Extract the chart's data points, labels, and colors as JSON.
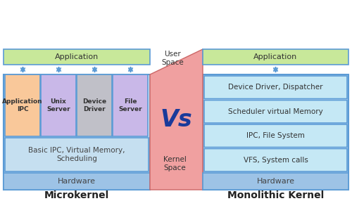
{
  "bg_color": "#ffffff",
  "title_left": "Microkernel",
  "title_right": "Monolithic Kernel",
  "vs_text": "Vs",
  "user_space": "User\nSpace",
  "kernel_space": "Kernel\nSpace",
  "left": {
    "app_label": "Application",
    "app_color": "#c8e89a",
    "boxes": [
      {
        "label": "Application\nIPC",
        "color": "#f9c89a"
      },
      {
        "label": "Unix\nServer",
        "color": "#c9b8e8"
      },
      {
        "label": "Device\nDriver",
        "color": "#c0c0c8"
      },
      {
        "label": "File\nServer",
        "color": "#c9b8e8"
      }
    ],
    "kernel_label": "Basic IPC, Virtual Memory,\nScheduling",
    "kernel_color": "#c5dff0",
    "hw_label": "Hardware",
    "hw_color": "#9dc3e6"
  },
  "right": {
    "app_label": "Application",
    "app_color": "#c8e89a",
    "layers": [
      {
        "label": "VFS, System calls",
        "color": "#c5e8f5"
      },
      {
        "label": "IPC, File System",
        "color": "#c5e8f5"
      },
      {
        "label": "Scheduler virtual Memory",
        "color": "#c5e8f5"
      },
      {
        "label": "Device Driver, Dispatcher",
        "color": "#c5e8f5"
      }
    ],
    "hw_label": "Hardware",
    "hw_color": "#9dc3e6"
  },
  "divider_color": "#f0a0a0",
  "divider_edge": "#cc6666",
  "arrow_color": "#5b9bd5",
  "border_color": "#5b9bd5"
}
